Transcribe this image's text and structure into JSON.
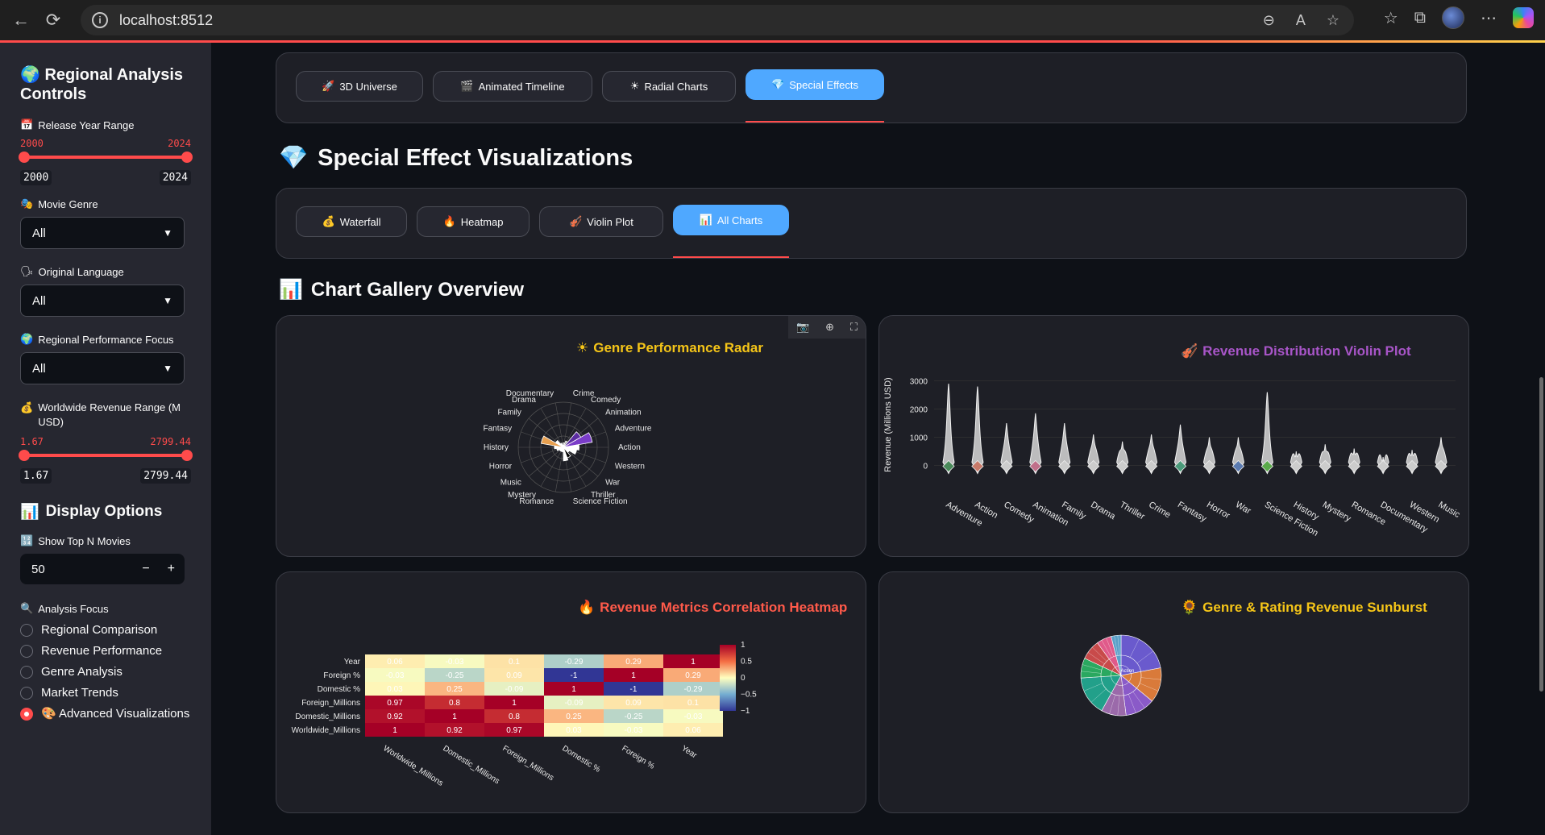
{
  "browser": {
    "url": "localhost:8512"
  },
  "sidebar": {
    "title": "Regional Analysis Controls",
    "year_range": {
      "label": "Release Year Range",
      "min": "2000",
      "max": "2024"
    },
    "genre": {
      "label": "Movie Genre",
      "value": "All"
    },
    "language": {
      "label": "Original Language",
      "value": "All"
    },
    "region": {
      "label": "Regional Performance Focus",
      "value": "All"
    },
    "revenue_range": {
      "label": "Worldwide Revenue Range (M USD)",
      "min": "1.67",
      "max": "2799.44"
    },
    "display_header": "Display Options",
    "top_n": {
      "label": "Show Top N Movies",
      "value": "50",
      "minus": "−",
      "plus": "+"
    },
    "focus": {
      "label": "Analysis Focus",
      "options": [
        "Regional Comparison",
        "Revenue Performance",
        "Genre Analysis",
        "Market Trends",
        "Advanced Visualizations"
      ],
      "selected": 4
    }
  },
  "tabs_top": [
    {
      "label": "3D Universe",
      "icon": "rocket-icon"
    },
    {
      "label": "Animated Timeline",
      "icon": "film-icon"
    },
    {
      "label": "Radial Charts",
      "icon": "sun-icon"
    },
    {
      "label": "Special Effects",
      "icon": "diamond-icon",
      "active": true
    }
  ],
  "heading": "Special Effect Visualizations",
  "tabs_sub": [
    {
      "label": "Waterfall",
      "icon": "money-bag-icon"
    },
    {
      "label": "Heatmap",
      "icon": "fire-icon"
    },
    {
      "label": "Violin Plot",
      "icon": "violin-icon"
    },
    {
      "label": "All Charts",
      "icon": "bar-chart-icon",
      "active": true
    }
  ],
  "gallery_heading": "Chart Gallery Overview",
  "colors": {
    "accent": "#ff4b4b",
    "active_tab": "#4fa8ff",
    "radar_title": "#f5c518",
    "violin_title": "#a855c8",
    "heatmap_title": "#ff5a4a",
    "sunburst_title": "#f5c518"
  },
  "chart_data": [
    {
      "type": "radar",
      "title": "Genre Performance Radar",
      "categories": [
        "Crime",
        "Comedy",
        "Animation",
        "Adventure",
        "Action",
        "Western",
        "War",
        "Thriller",
        "Science Fiction",
        "Romance",
        "Mystery",
        "Music",
        "Horror",
        "History",
        "Fantasy",
        "Family",
        "Drama",
        "Documentary"
      ],
      "values": [
        0.1,
        0.15,
        0.45,
        0.65,
        0.35,
        0.3,
        0.15,
        0.25,
        0.3,
        0.1,
        0.1,
        0.1,
        0.15,
        0.2,
        0.5,
        0.2,
        0.1,
        0.05
      ],
      "colors": [
        "#a0a0a0",
        "#a0a0a0",
        "#5b2ca0",
        "#7a3cc8",
        "#ffffff",
        "#ffffff",
        "#ffffff",
        "#000000",
        "#ffffff",
        "#ffffff",
        "#ffffff",
        "#ffffff",
        "#ffffff",
        "#ffffff",
        "#e8a050",
        "#ffffff",
        "#ffffff",
        "#ffffff"
      ]
    },
    {
      "type": "violin",
      "title": "Revenue Distribution Violin Plot",
      "ylabel": "Revenue (Millions USD)",
      "yticks": [
        0,
        1000,
        2000,
        3000
      ],
      "ylim": [
        -300,
        3300
      ],
      "categories": [
        "Adventure",
        "Action",
        "Comedy",
        "Animation",
        "Family",
        "Drama",
        "Thriller",
        "Crime",
        "Fantasy",
        "Horror",
        "War",
        "Science Fiction",
        "History",
        "Mystery",
        "Romance",
        "Documentary",
        "Western",
        "Music"
      ],
      "max_values": [
        2900,
        2800,
        1500,
        1850,
        1500,
        1100,
        850,
        1100,
        1450,
        1000,
        1000,
        2600,
        500,
        750,
        600,
        300,
        550,
        1000
      ],
      "colors": [
        "#4a8a5a",
        "#c87a6a",
        "#cccccc",
        "#c0708a",
        "#cccccc",
        "#cccccc",
        "#cccccc",
        "#cccccc",
        "#4a9a7a",
        "#cccccc",
        "#5a7ab0",
        "#5aaa4a",
        "#cccccc",
        "#cccccc",
        "#cccccc",
        "#cccccc",
        "#cccccc",
        "#cccccc"
      ]
    },
    {
      "type": "heatmap",
      "title": "Revenue Metrics Correlation Heatmap",
      "rows": [
        "Year",
        "Foreign %",
        "Domestic %",
        "Foreign_Millions",
        "Domestic_Millions",
        "Worldwide_Millions"
      ],
      "cols": [
        "Worldwide_Millions",
        "Domestic_Millions",
        "Foreign_Millions",
        "Domestic %",
        "Foreign %",
        "Year"
      ],
      "values": [
        [
          0.06,
          -0.03,
          0.1,
          -0.29,
          0.29,
          1
        ],
        [
          -0.03,
          -0.25,
          0.09,
          -1,
          1,
          0.29
        ],
        [
          0.03,
          0.25,
          -0.09,
          1,
          -1,
          -0.29
        ],
        [
          0.97,
          0.8,
          1,
          -0.09,
          0.09,
          0.1
        ],
        [
          0.92,
          1,
          0.8,
          0.25,
          -0.25,
          -0.03
        ],
        [
          1,
          0.92,
          0.97,
          0.03,
          -0.03,
          0.06
        ]
      ],
      "colorbar_ticks": [
        1,
        0.5,
        0,
        -0.5,
        -1
      ]
    },
    {
      "type": "sunburst",
      "title": "Genre & Rating Revenue Sunburst",
      "center_label": "Action",
      "slices": [
        {
          "color": "#6a5acd",
          "value": 22
        },
        {
          "color": "#d97a3a",
          "value": 14
        },
        {
          "color": "#8a5ac8",
          "value": 12
        },
        {
          "color": "#9b6aaa",
          "value": 10
        },
        {
          "color": "#22a08a",
          "value": 16
        },
        {
          "color": "#2aa860",
          "value": 8
        },
        {
          "color": "#c84a4a",
          "value": 8
        },
        {
          "color": "#e05a8a",
          "value": 6
        },
        {
          "color": "#5aa0c8",
          "value": 4
        }
      ]
    }
  ]
}
